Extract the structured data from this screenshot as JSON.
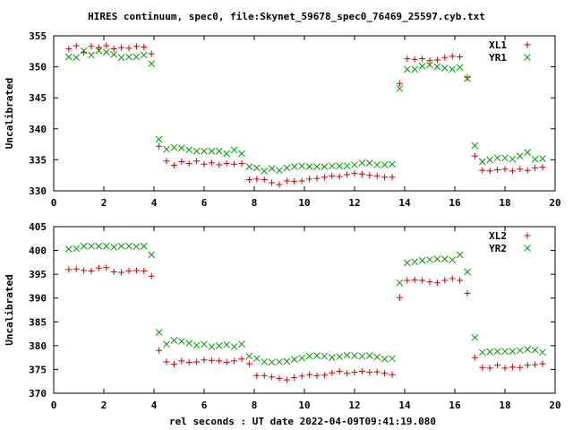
{
  "chart_data": [
    {
      "type": "scatter",
      "title": "HIRES continuum, spec0, file:Skynet_59678_spec0_76469_25597.cyb.txt",
      "xlabel": "",
      "ylabel": "Uncalibrated",
      "xlim": [
        0,
        20
      ],
      "ylim": [
        330,
        355
      ],
      "xticks": [
        "0",
        "2",
        "4",
        "6",
        "8",
        "10",
        "12",
        "14",
        "16",
        "18",
        "20"
      ],
      "yticks": [
        "330",
        "335",
        "340",
        "345",
        "350",
        "355"
      ],
      "legend_position": "top-right",
      "series": [
        {
          "name": "XL1",
          "color": "#cc0000",
          "marker": "plus",
          "x": [
            0.6,
            0.9,
            1.2,
            1.5,
            1.8,
            2.1,
            2.4,
            2.7,
            3.0,
            3.3,
            3.6,
            3.9,
            4.2,
            4.5,
            4.8,
            5.1,
            5.4,
            5.7,
            6.0,
            6.3,
            6.6,
            6.9,
            7.2,
            7.5,
            7.8,
            8.1,
            8.4,
            8.7,
            9.0,
            9.3,
            9.6,
            9.9,
            10.2,
            10.5,
            10.8,
            11.1,
            11.4,
            11.7,
            12.0,
            12.3,
            12.6,
            12.9,
            13.2,
            13.5,
            13.8,
            14.1,
            14.4,
            14.7,
            15.0,
            15.3,
            15.6,
            15.9,
            16.2,
            16.5,
            16.8,
            17.1,
            17.4,
            17.7,
            18.0,
            18.3,
            18.6,
            18.9,
            19.2,
            19.5
          ],
          "y": [
            352.9,
            353.4,
            352.3,
            353.3,
            353.1,
            353.4,
            352.9,
            353.1,
            353.0,
            353.3,
            353.2,
            352.1,
            337.2,
            334.8,
            334.1,
            334.7,
            334.4,
            334.8,
            334.3,
            334.5,
            334.2,
            334.4,
            334.3,
            334.4,
            331.8,
            331.9,
            331.8,
            331.3,
            331.0,
            331.6,
            331.5,
            331.6,
            331.9,
            332.0,
            332.2,
            332.4,
            332.3,
            332.6,
            332.8,
            332.7,
            332.5,
            332.4,
            332.2,
            332.2,
            347.3,
            351.3,
            351.2,
            351.3,
            351.0,
            351.1,
            351.5,
            351.7,
            351.6,
            348.3,
            335.6,
            333.3,
            333.2,
            333.4,
            333.5,
            333.2,
            333.5,
            333.3,
            333.7,
            333.8
          ]
        },
        {
          "name": "YR1",
          "color": "#009900",
          "marker": "cross",
          "x": [
            0.6,
            0.9,
            1.2,
            1.5,
            1.8,
            2.1,
            2.4,
            2.7,
            3.0,
            3.3,
            3.6,
            3.9,
            4.2,
            4.5,
            4.8,
            5.1,
            5.4,
            5.7,
            6.0,
            6.3,
            6.6,
            6.9,
            7.2,
            7.5,
            7.8,
            8.1,
            8.4,
            8.7,
            9.0,
            9.3,
            9.6,
            9.9,
            10.2,
            10.5,
            10.8,
            11.1,
            11.4,
            11.7,
            12.0,
            12.3,
            12.6,
            12.9,
            13.2,
            13.5,
            13.8,
            14.1,
            14.4,
            14.7,
            15.0,
            15.3,
            15.6,
            15.9,
            16.2,
            16.5,
            16.8,
            17.1,
            17.4,
            17.7,
            18.0,
            18.3,
            18.6,
            18.9,
            19.2,
            19.5
          ],
          "y": [
            351.6,
            351.5,
            352.6,
            351.9,
            352.6,
            352.4,
            352.0,
            351.5,
            351.6,
            351.6,
            351.9,
            350.5,
            338.3,
            336.7,
            337.0,
            336.9,
            336.6,
            336.4,
            336.4,
            336.4,
            336.4,
            336.0,
            336.6,
            336.0,
            333.9,
            333.7,
            333.2,
            333.6,
            333.3,
            333.7,
            333.9,
            334.0,
            333.9,
            333.9,
            333.9,
            334.0,
            334.0,
            334.0,
            334.2,
            334.5,
            334.5,
            334.2,
            334.2,
            334.3,
            346.5,
            349.6,
            349.6,
            350.1,
            350.3,
            350.0,
            349.8,
            349.6,
            349.9,
            348.1,
            337.3,
            334.7,
            335.0,
            335.3,
            335.3,
            335.1,
            335.6,
            336.2,
            335.1,
            335.2
          ]
        }
      ]
    },
    {
      "type": "scatter",
      "title": "",
      "xlabel": "rel seconds : UT date 2022-04-09T09:41:19.080",
      "ylabel": "Uncalibrated",
      "xlim": [
        0,
        20
      ],
      "ylim": [
        370,
        405
      ],
      "xticks": [
        "0",
        "2",
        "4",
        "6",
        "8",
        "10",
        "12",
        "14",
        "16",
        "18",
        "20"
      ],
      "yticks": [
        "370",
        "375",
        "380",
        "385",
        "390",
        "395",
        "400",
        "405"
      ],
      "legend_position": "top-right",
      "series": [
        {
          "name": "XL2",
          "color": "#cc0000",
          "marker": "plus",
          "x": [
            0.6,
            0.9,
            1.2,
            1.5,
            1.8,
            2.1,
            2.4,
            2.7,
            3.0,
            3.3,
            3.6,
            3.9,
            4.2,
            4.5,
            4.8,
            5.1,
            5.4,
            5.7,
            6.0,
            6.3,
            6.6,
            6.9,
            7.2,
            7.5,
            7.8,
            8.1,
            8.4,
            8.7,
            9.0,
            9.3,
            9.6,
            9.9,
            10.2,
            10.5,
            10.8,
            11.1,
            11.4,
            11.7,
            12.0,
            12.3,
            12.6,
            12.9,
            13.2,
            13.5,
            13.8,
            14.1,
            14.4,
            14.7,
            15.0,
            15.3,
            15.6,
            15.9,
            16.2,
            16.5,
            16.8,
            17.1,
            17.4,
            17.7,
            18.0,
            18.3,
            18.6,
            18.9,
            19.2,
            19.5
          ],
          "y": [
            396.0,
            396.1,
            395.8,
            395.7,
            396.3,
            396.4,
            395.5,
            395.4,
            395.7,
            395.8,
            395.7,
            394.6,
            379.0,
            376.6,
            376.1,
            376.8,
            376.5,
            376.6,
            377.0,
            376.9,
            376.8,
            376.5,
            376.8,
            377.2,
            376.2,
            373.7,
            373.7,
            373.4,
            373.1,
            372.8,
            373.3,
            373.6,
            373.9,
            373.7,
            373.8,
            374.3,
            374.6,
            374.2,
            374.4,
            374.6,
            374.4,
            374.5,
            374.2,
            373.9,
            390.1,
            393.7,
            393.8,
            393.7,
            393.4,
            393.2,
            393.7,
            394.1,
            393.7,
            391.0,
            377.5,
            375.4,
            375.3,
            375.9,
            375.3,
            375.5,
            375.4,
            375.9,
            376.0,
            376.2
          ]
        },
        {
          "name": "YR2",
          "color": "#009900",
          "marker": "cross",
          "x": [
            0.6,
            0.9,
            1.2,
            1.5,
            1.8,
            2.1,
            2.4,
            2.7,
            3.0,
            3.3,
            3.6,
            3.9,
            4.2,
            4.5,
            4.8,
            5.1,
            5.4,
            5.7,
            6.0,
            6.3,
            6.6,
            6.9,
            7.2,
            7.5,
            7.8,
            8.1,
            8.4,
            8.7,
            9.0,
            9.3,
            9.6,
            9.9,
            10.2,
            10.5,
            10.8,
            11.1,
            11.4,
            11.7,
            12.0,
            12.3,
            12.6,
            12.9,
            13.2,
            13.5,
            13.8,
            14.1,
            14.4,
            14.7,
            15.0,
            15.3,
            15.6,
            15.9,
            16.2,
            16.5,
            16.8,
            17.1,
            17.4,
            17.7,
            18.0,
            18.3,
            18.6,
            18.9,
            19.2,
            19.5
          ],
          "y": [
            400.3,
            400.4,
            400.9,
            400.9,
            400.9,
            400.9,
            400.7,
            400.9,
            400.9,
            400.8,
            400.9,
            399.1,
            382.8,
            380.3,
            381.1,
            380.9,
            380.5,
            380.1,
            380.3,
            379.8,
            380.0,
            380.2,
            379.8,
            380.3,
            377.8,
            377.3,
            376.6,
            376.5,
            376.6,
            376.7,
            377.1,
            377.4,
            377.8,
            377.9,
            377.8,
            377.5,
            377.7,
            378.0,
            377.9,
            377.8,
            377.9,
            377.6,
            377.2,
            377.3,
            393.2,
            397.4,
            397.6,
            397.9,
            398.1,
            398.2,
            398.2,
            398.0,
            399.1,
            395.5,
            381.7,
            378.6,
            378.7,
            378.8,
            378.8,
            378.8,
            379.0,
            379.2,
            379.1,
            378.6
          ]
        }
      ]
    }
  ]
}
